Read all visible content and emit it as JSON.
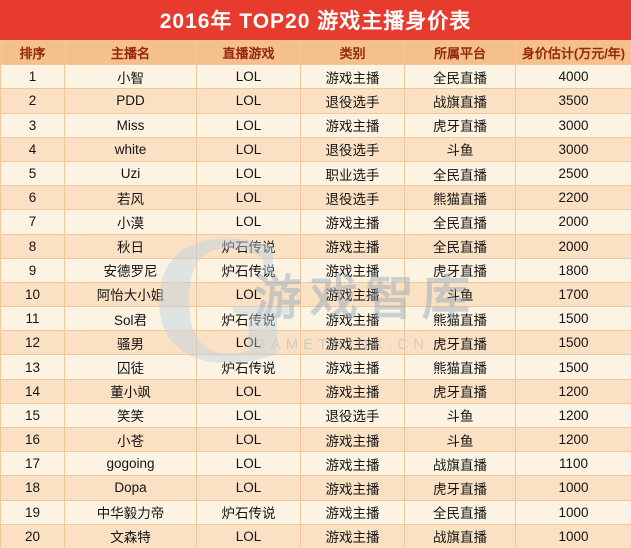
{
  "page": {
    "title": "2016年 TOP20 游戏主播身价表"
  },
  "colors": {
    "title_bar_bg": "#e73b2d",
    "title_text": "#ffffff",
    "header_row_bg": "#f6c08c",
    "header_row_text": "#93280c",
    "row_odd_bg": "#fdf3e3",
    "row_even_bg": "#fbe1c4",
    "grid_line": "#f2c79c"
  },
  "watermark": {
    "letter": "G",
    "title": "游戏智库",
    "subtitle": "GAMETHINK.CN"
  },
  "chart_data": {
    "type": "table",
    "title": "2016年 TOP20 游戏主播身价表",
    "columns": [
      "排序",
      "主播名",
      "直播游戏",
      "类别",
      "所属平台",
      "身价估计(万元/年)"
    ],
    "column_keys": [
      "rank",
      "name",
      "game",
      "category",
      "platform",
      "worth"
    ],
    "rows": [
      [
        "1",
        "小智",
        "LOL",
        "游戏主播",
        "全民直播",
        "4000"
      ],
      [
        "2",
        "PDD",
        "LOL",
        "退役选手",
        "战旗直播",
        "3500"
      ],
      [
        "3",
        "Miss",
        "LOL",
        "游戏主播",
        "虎牙直播",
        "3000"
      ],
      [
        "4",
        "white",
        "LOL",
        "退役选手",
        "斗鱼",
        "3000"
      ],
      [
        "5",
        "Uzi",
        "LOL",
        "职业选手",
        "全民直播",
        "2500"
      ],
      [
        "6",
        "若风",
        "LOL",
        "退役选手",
        "熊猫直播",
        "2200"
      ],
      [
        "7",
        "小漠",
        "LOL",
        "游戏主播",
        "全民直播",
        "2000"
      ],
      [
        "8",
        "秋日",
        "炉石传说",
        "游戏主播",
        "全民直播",
        "2000"
      ],
      [
        "9",
        "安德罗尼",
        "炉石传说",
        "游戏主播",
        "虎牙直播",
        "1800"
      ],
      [
        "10",
        "阿怡大小姐",
        "LOL",
        "游戏主播",
        "斗鱼",
        "1700"
      ],
      [
        "11",
        "Sol君",
        "炉石传说",
        "游戏主播",
        "熊猫直播",
        "1500"
      ],
      [
        "12",
        "骚男",
        "LOL",
        "游戏主播",
        "虎牙直播",
        "1500"
      ],
      [
        "13",
        "囚徒",
        "炉石传说",
        "游戏主播",
        "熊猫直播",
        "1500"
      ],
      [
        "14",
        "董小飒",
        "LOL",
        "游戏主播",
        "虎牙直播",
        "1200"
      ],
      [
        "15",
        "笑笑",
        "LOL",
        "退役选手",
        "斗鱼",
        "1200"
      ],
      [
        "16",
        "小苍",
        "LOL",
        "游戏主播",
        "斗鱼",
        "1200"
      ],
      [
        "17",
        "gogoing",
        "LOL",
        "游戏主播",
        "战旗直播",
        "1100"
      ],
      [
        "18",
        "Dopa",
        "LOL",
        "游戏主播",
        "虎牙直播",
        "1000"
      ],
      [
        "19",
        "中华毅力帝",
        "炉石传说",
        "游戏主播",
        "全民直播",
        "1000"
      ],
      [
        "20",
        "文森特",
        "LOL",
        "游戏主播",
        "战旗直播",
        "1000"
      ]
    ]
  }
}
